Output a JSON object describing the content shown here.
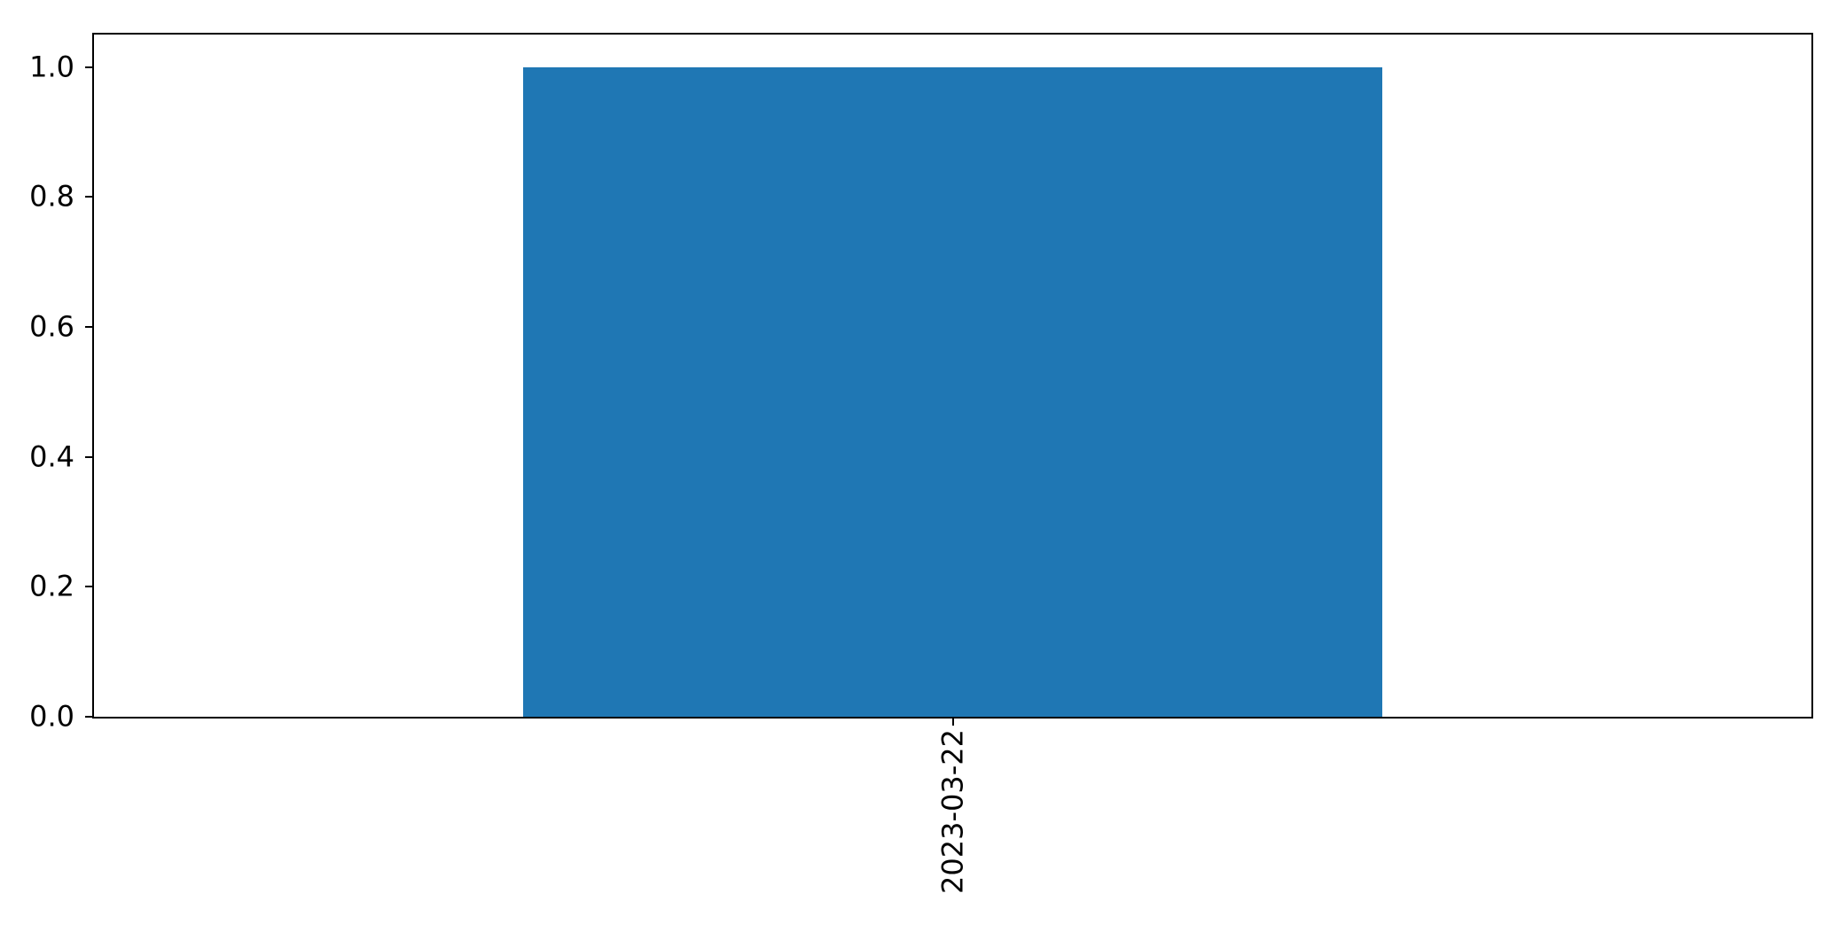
{
  "chart_data": {
    "type": "bar",
    "title": "",
    "xlabel": "",
    "ylabel": "",
    "categories": [
      "2023-03-22"
    ],
    "values": [
      1.0
    ],
    "ylim": [
      0,
      1.05
    ],
    "yticks": [
      {
        "value": 0.0,
        "label": "0.0"
      },
      {
        "value": 0.2,
        "label": "0.2"
      },
      {
        "value": 0.4,
        "label": "0.4"
      },
      {
        "value": 0.6,
        "label": "0.6"
      },
      {
        "value": 0.8,
        "label": "0.8"
      },
      {
        "value": 1.0,
        "label": "1.0"
      }
    ],
    "xtick_rotation_deg": 90,
    "bar_color": "#1f77b4",
    "bar_width_fraction": 0.5,
    "spine_color": "#000000",
    "tick_color": "#000000",
    "tick_label_color": "#000000",
    "background_color": "#ffffff",
    "grid": false,
    "legend": "none"
  }
}
